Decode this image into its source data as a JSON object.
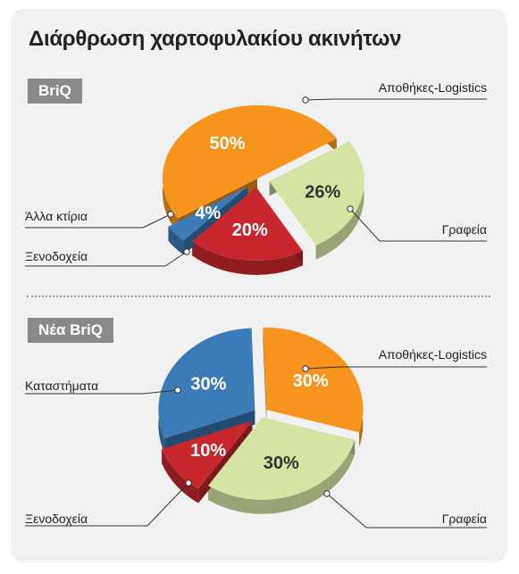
{
  "title": "Διάρθρωση χαρτοφυλακίου ακινήτων",
  "colors": {
    "orange": "#f7941d",
    "blue": "#3a7bb8",
    "red": "#c7272d",
    "green": "#d4e4a2",
    "badge": "#8a8a8a"
  },
  "chart_data": [
    {
      "type": "pie",
      "title": "BriQ",
      "slices": [
        {
          "label": "Αποθήκες-Logistics",
          "value": 50,
          "value_label": "50%",
          "color": "#f7941d"
        },
        {
          "label": "Γραφεία",
          "value": 26,
          "value_label": "26%",
          "color": "#d4e4a2"
        },
        {
          "label": "Ξενοδοχεία",
          "value": 20,
          "value_label": "20%",
          "color": "#c7272d"
        },
        {
          "label": "Άλλα κτίρια",
          "value": 4,
          "value_label": "4%",
          "color": "#3a7bb8"
        }
      ]
    },
    {
      "type": "pie",
      "title": "Νέα BriQ",
      "slices": [
        {
          "label": "Αποθήκες-Logistics",
          "value": 30,
          "value_label": "30%",
          "color": "#f7941d"
        },
        {
          "label": "Γραφεία",
          "value": 30,
          "value_label": "30%",
          "color": "#d4e4a2"
        },
        {
          "label": "Ξενοδοχεία",
          "value": 10,
          "value_label": "10%",
          "color": "#c7272d"
        },
        {
          "label": "Καταστήματα",
          "value": 30,
          "value_label": "30%",
          "color": "#3a7bb8"
        }
      ]
    }
  ]
}
